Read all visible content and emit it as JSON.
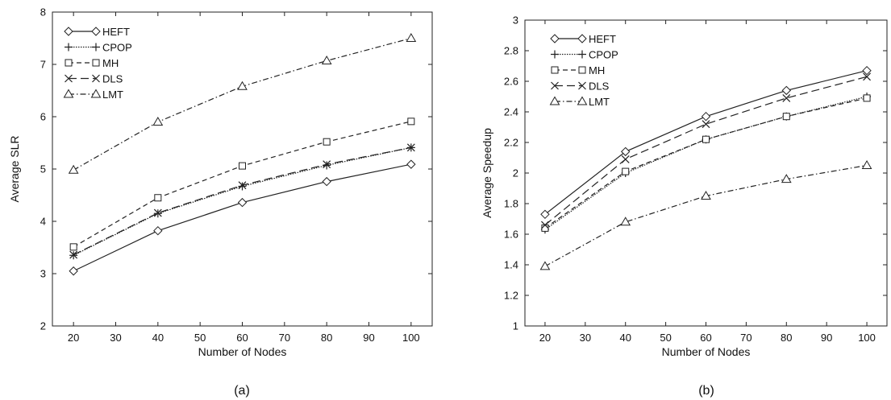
{
  "chart_data": [
    {
      "type": "line",
      "caption": "(a)",
      "xlabel": "Number of Nodes",
      "ylabel": "Average SLR",
      "xlim": [
        15,
        105
      ],
      "ylim": [
        2,
        8
      ],
      "xticks": [
        20,
        30,
        40,
        50,
        60,
        70,
        80,
        90,
        100
      ],
      "yticks": [
        2,
        3,
        4,
        5,
        6,
        7,
        8
      ],
      "grid": false,
      "legend": "top-left",
      "x": [
        20,
        40,
        60,
        80,
        100
      ],
      "series": [
        {
          "name": "HEFT",
          "marker": "diamond",
          "dash": "solid",
          "values": [
            3.05,
            3.82,
            4.36,
            4.76,
            5.09
          ]
        },
        {
          "name": "CPOP",
          "marker": "plus",
          "dash": "dotted",
          "values": [
            3.35,
            4.15,
            4.67,
            5.07,
            5.41
          ]
        },
        {
          "name": "MH",
          "marker": "square",
          "dash": "dashed",
          "values": [
            3.51,
            4.45,
            5.06,
            5.52,
            5.91
          ]
        },
        {
          "name": "DLS",
          "marker": "x",
          "dash": "longdash",
          "values": [
            3.36,
            4.16,
            4.69,
            5.09,
            5.41
          ]
        },
        {
          "name": "LMT",
          "marker": "triangle",
          "dash": "dashdot",
          "values": [
            4.98,
            5.9,
            6.58,
            7.07,
            7.5
          ]
        }
      ]
    },
    {
      "type": "line",
      "caption": "(b)",
      "xlabel": "Number of Nodes",
      "ylabel": "Average Speedup",
      "xlim": [
        15,
        105
      ],
      "ylim": [
        1,
        3
      ],
      "xticks": [
        20,
        30,
        40,
        50,
        60,
        70,
        80,
        90,
        100
      ],
      "yticks": [
        "1",
        "1.2",
        "1.4",
        "1.6",
        "1.8",
        "2",
        "2.2",
        "2.4",
        "2.6",
        "2.8",
        "3"
      ],
      "grid": false,
      "legend": "top-left",
      "x": [
        20,
        40,
        60,
        80,
        100
      ],
      "series": [
        {
          "name": "HEFT",
          "marker": "diamond",
          "dash": "solid",
          "values": [
            1.73,
            2.14,
            2.37,
            2.54,
            2.67
          ]
        },
        {
          "name": "CPOP",
          "marker": "plus",
          "dash": "dotted",
          "values": [
            1.63,
            2.0,
            2.22,
            2.37,
            2.5
          ]
        },
        {
          "name": "MH",
          "marker": "square",
          "dash": "dashed",
          "values": [
            1.64,
            2.01,
            2.22,
            2.37,
            2.49
          ]
        },
        {
          "name": "DLS",
          "marker": "x",
          "dash": "longdash",
          "values": [
            1.66,
            2.09,
            2.32,
            2.49,
            2.63
          ]
        },
        {
          "name": "LMT",
          "marker": "triangle",
          "dash": "dashdot",
          "values": [
            1.39,
            1.68,
            1.85,
            1.96,
            2.05
          ]
        }
      ]
    }
  ]
}
